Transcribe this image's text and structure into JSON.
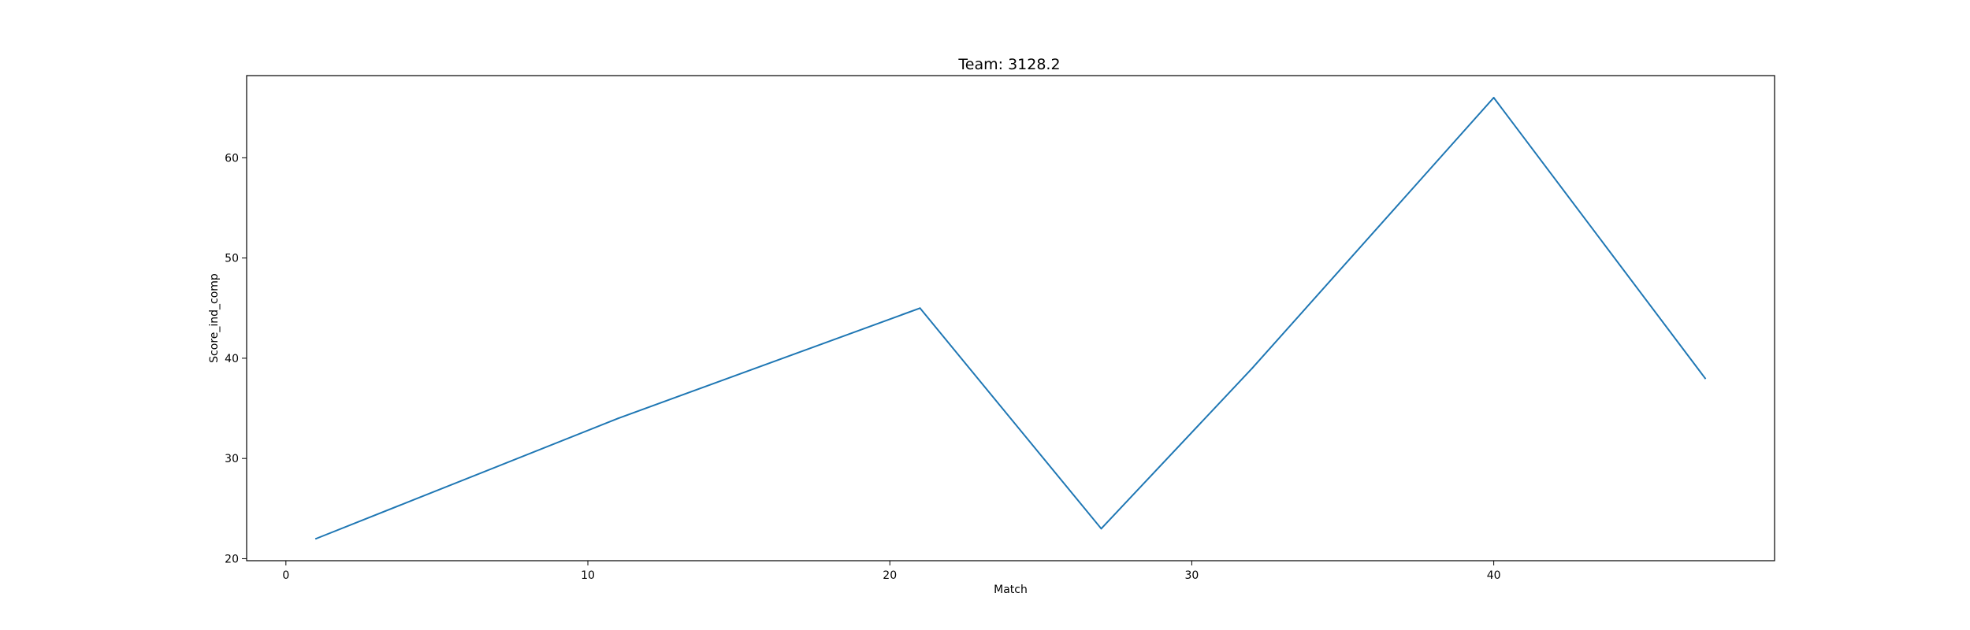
{
  "chart_data": {
    "type": "line",
    "title": "Team: 3128.2",
    "xlabel": "Match",
    "ylabel": "Score_ind_comp",
    "xlim": [
      -1.3,
      49.3
    ],
    "ylim": [
      19.8,
      68.2
    ],
    "xticks": [
      0,
      10,
      20,
      30,
      40
    ],
    "yticks": [
      20,
      30,
      40,
      50,
      60
    ],
    "grid": false,
    "legend": "none",
    "series": [
      {
        "color": "#1f77b4",
        "x": [
          1,
          11,
          21,
          27,
          32,
          40,
          47
        ],
        "y": [
          22,
          34,
          45,
          23,
          39,
          66,
          38
        ]
      }
    ]
  }
}
